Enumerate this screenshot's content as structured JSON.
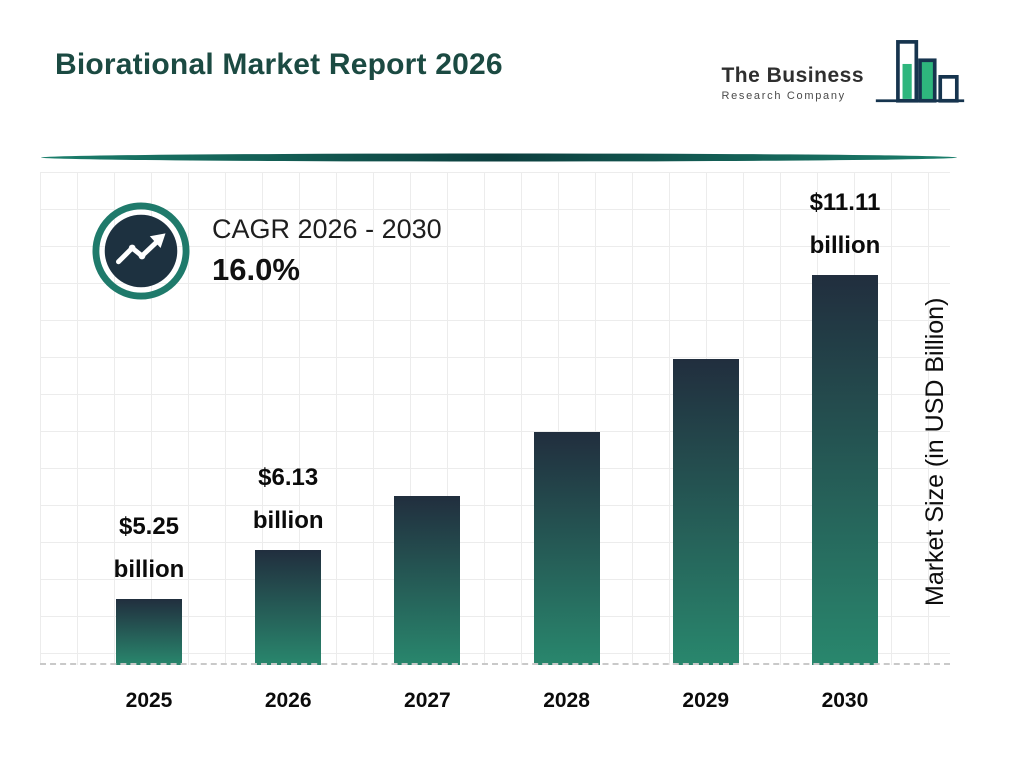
{
  "header": {
    "title": "Biorational Market Report 2026",
    "logo": {
      "line1": "The Business",
      "line2": "Research Company"
    }
  },
  "cagr": {
    "label": "CAGR 2026 - 2030",
    "value": "16.0%"
  },
  "chart_data": {
    "type": "bar",
    "title": "Biorational Market Report 2026",
    "categories": [
      "2025",
      "2026",
      "2027",
      "2028",
      "2029",
      "2030"
    ],
    "values": [
      5.25,
      6.13,
      7.11,
      8.25,
      9.57,
      11.11
    ],
    "value_labels": [
      [
        "$5.25",
        "billion"
      ],
      [
        "$6.13",
        "billion"
      ],
      null,
      null,
      null,
      [
        "$11.11",
        "billion"
      ]
    ],
    "xlabel": "",
    "ylabel": "Market Size (in USD Billion)",
    "ylim": [
      0,
      12
    ],
    "grid": true,
    "legend": "none",
    "cagr_label": "CAGR 2026 - 2030",
    "cagr_value": "16.0%"
  },
  "colors": {
    "title_text": "#1b4a42",
    "bar_gradient_top": "#212e3e",
    "bar_gradient_bottom": "#29876d",
    "accent_teal": "#1f7a6b",
    "icon_inner_navy": "#1d3140",
    "logo_navy": "#16344e",
    "logo_green": "#2eb67d",
    "grid_line": "#ececec"
  }
}
